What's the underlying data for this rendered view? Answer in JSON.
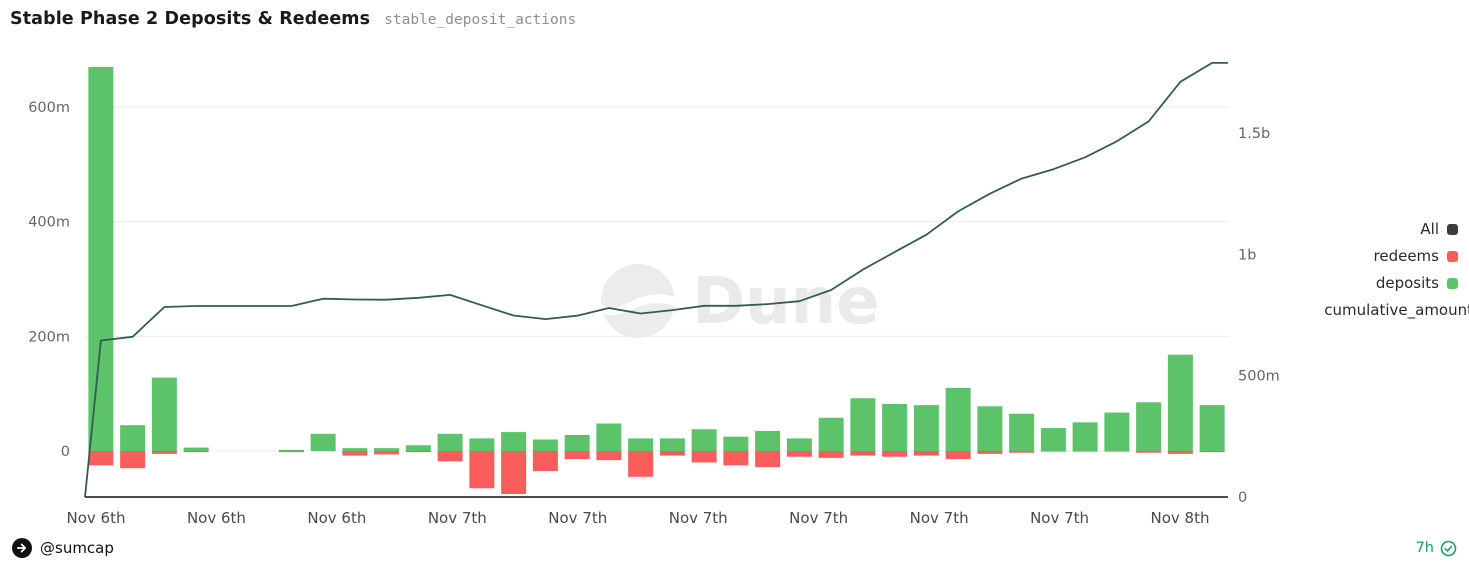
{
  "header": {
    "title": "Stable Phase 2 Deposits & Redeems",
    "subtitle": "stable_deposit_actions"
  },
  "watermark": {
    "text": "Dune"
  },
  "legend": {
    "items": [
      {
        "id": "all",
        "label": "All",
        "color": "#3d3d3d"
      },
      {
        "id": "redeems",
        "label": "redeems",
        "color": "#f95d5b"
      },
      {
        "id": "deposits",
        "label": "deposits",
        "color": "#5dc36a"
      },
      {
        "id": "cumulative-amount",
        "label": "cumulative_amount",
        "color": "#335d51",
        "overhang": 34
      }
    ]
  },
  "footer": {
    "author_handle": "@sumcap",
    "freshness": "7h"
  },
  "chart_data": {
    "type": "bar",
    "subtype": "bars-with-cumulative-line",
    "title": "Stable Phase 2 Deposits & Redeems",
    "query_name": "stable_deposit_actions",
    "grid": true,
    "legend_position": "right",
    "x_tick_labels": [
      "Nov 6th",
      "Nov 6th",
      "Nov 6th",
      "Nov 7th",
      "Nov 7th",
      "Nov 7th",
      "Nov 7th",
      "Nov 7th",
      "Nov 7th",
      "Nov 8th"
    ],
    "left_axis": {
      "unit": "millions",
      "range_millions": [
        -80,
        700
      ],
      "ticks": [
        {
          "label": "0",
          "value": 0
        },
        {
          "label": "200m",
          "value": 200
        },
        {
          "label": "400m",
          "value": 400
        },
        {
          "label": "600m",
          "value": 600
        }
      ]
    },
    "right_axis": {
      "unit": "millions",
      "range_millions": [
        0,
        1875
      ],
      "ticks": [
        {
          "label": "0",
          "value": 0
        },
        {
          "label": "500m",
          "value": 500
        },
        {
          "label": "1b",
          "value": 1000
        },
        {
          "label": "1.5b",
          "value": 1500
        }
      ]
    },
    "series": [
      {
        "name": "deposits",
        "type": "bar",
        "axis": "left",
        "color": "#5dc36a",
        "values_millions": [
          670,
          45,
          128,
          6,
          0,
          0,
          2,
          30,
          5,
          5,
          10,
          30,
          22,
          33,
          20,
          28,
          48,
          22,
          22,
          38,
          25,
          35,
          22,
          58,
          92,
          82,
          80,
          110,
          78,
          65,
          40,
          50,
          67,
          85,
          168,
          80
        ]
      },
      {
        "name": "redeems",
        "type": "bar",
        "axis": "left",
        "color": "#f95d5b",
        "values_millions": [
          -25,
          -30,
          -5,
          -2,
          0,
          0,
          -2,
          0,
          -8,
          -6,
          -2,
          -18,
          -65,
          -75,
          -35,
          -14,
          -16,
          -45,
          -8,
          -20,
          -25,
          -28,
          -10,
          -12,
          -8,
          -10,
          -8,
          -14,
          -5,
          -3,
          -1,
          -1,
          -1,
          -3,
          -5,
          -2
        ]
      },
      {
        "name": "cumulative_amount",
        "type": "line",
        "axis": "right",
        "color": "#335d51",
        "values_millions": [
          645,
          660,
          783,
          787,
          787,
          787,
          787,
          817,
          814,
          813,
          821,
          833,
          790,
          748,
          733,
          747,
          779,
          756,
          770,
          788,
          788,
          795,
          807,
          853,
          937,
          1009,
          1081,
          1177,
          1250,
          1312,
          1351,
          1400,
          1466,
          1548,
          1711,
          1789
        ]
      }
    ]
  }
}
